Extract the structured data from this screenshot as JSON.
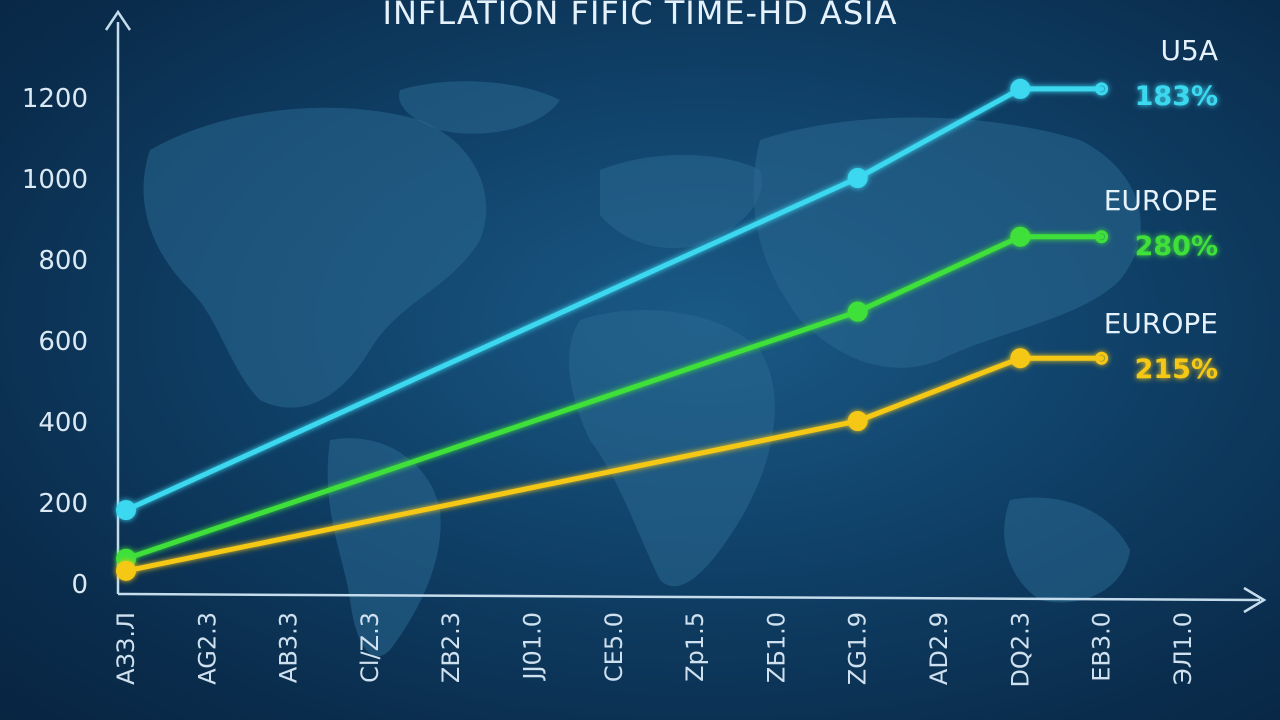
{
  "chart_data": {
    "type": "line",
    "title": "INFLATION FIFIC TIME-HD ASIA",
    "xlabel": "",
    "ylabel": "",
    "ylim": [
      0,
      1300
    ],
    "yticks": [
      0,
      200,
      400,
      600,
      800,
      1000,
      1200
    ],
    "categories": [
      "AЗЗ.Л",
      "AG2.3",
      "AB3.3",
      "Cl/Z.3",
      "ZB2.3",
      "JJ01.0",
      "CE5.0",
      "Zp1.5",
      "ZБ1.0",
      "ZG1.9",
      "AD2.9",
      "DQ2.3",
      "EB3.0",
      "ЭЛ1.0"
    ],
    "series": [
      {
        "name": "U5A",
        "label": "183%",
        "color": "#3ad8f0",
        "points": [
          [
            0,
            180
          ],
          [
            9,
            1000
          ],
          [
            11,
            1220
          ],
          [
            12,
            1220
          ]
        ]
      },
      {
        "name": "EUROPE",
        "label": "280%",
        "color": "#3fe03a",
        "points": [
          [
            0,
            60
          ],
          [
            9,
            670
          ],
          [
            11,
            855
          ],
          [
            12,
            855
          ]
        ]
      },
      {
        "name": "EUROPE",
        "label": "215%",
        "color": "#f5c816",
        "points": [
          [
            0,
            30
          ],
          [
            9,
            400
          ],
          [
            11,
            555
          ],
          [
            12,
            555
          ]
        ]
      }
    ],
    "legend_placement": "right",
    "grid": false
  }
}
